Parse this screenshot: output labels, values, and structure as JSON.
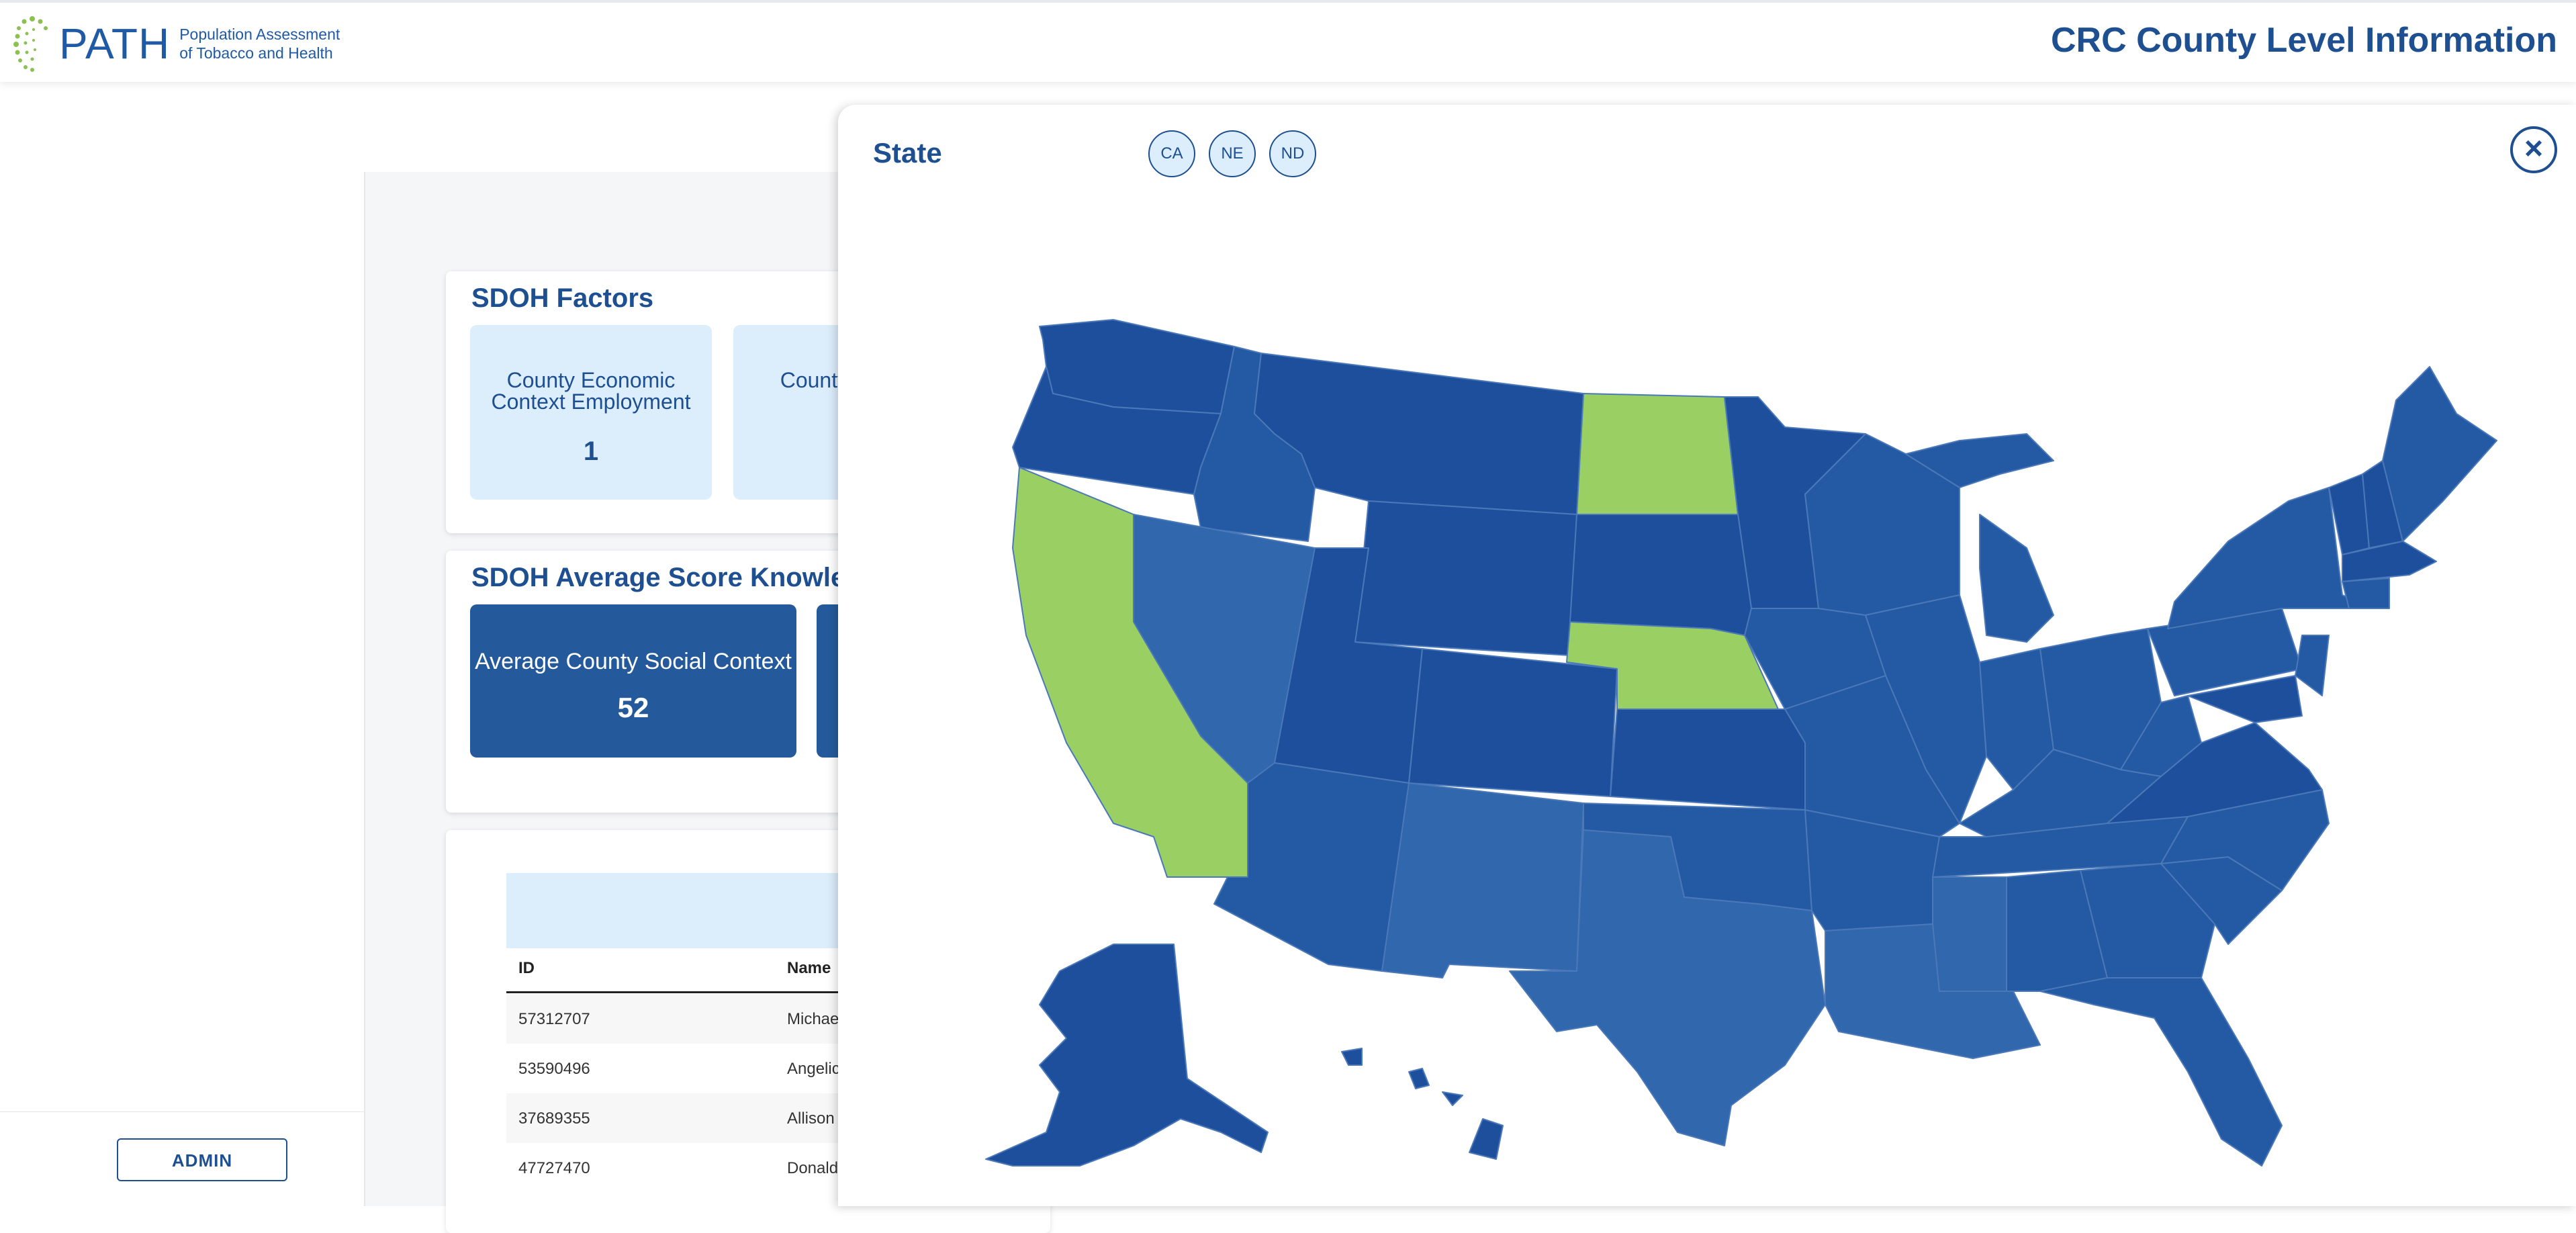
{
  "header": {
    "logo_word": "PATH",
    "logo_line1": "Population Assessment",
    "logo_line2": "of Tobacco and Health",
    "title": "CRC County Level Information"
  },
  "sidebar": {
    "admin_label": "ADMIN"
  },
  "sdoh_factors": {
    "title": "SDOH Factors",
    "tiles": [
      {
        "label": "County Economic Context Employment",
        "value": "1"
      },
      {
        "label": "County Context",
        "value": ""
      }
    ]
  },
  "sdoh_average": {
    "title": "SDOH Average Score Knowledg",
    "tiles": [
      {
        "label": "Average County Social Context",
        "value": "52"
      }
    ]
  },
  "table": {
    "columns": [
      "ID",
      "Name"
    ],
    "rows": [
      {
        "id": "57312707",
        "name": "Michae"
      },
      {
        "id": "53590496",
        "name": "Angelic"
      },
      {
        "id": "37689355",
        "name": "Allison"
      },
      {
        "id": "47727470",
        "name": "Donald"
      }
    ]
  },
  "modal": {
    "title": "State",
    "chips": [
      "CA",
      "NE",
      "ND"
    ],
    "close_icon": "close-icon",
    "colors": {
      "selected": "#9ad063",
      "dark": "#1e4f9c",
      "mid": "#2459a4",
      "light": "#3067ad"
    }
  }
}
